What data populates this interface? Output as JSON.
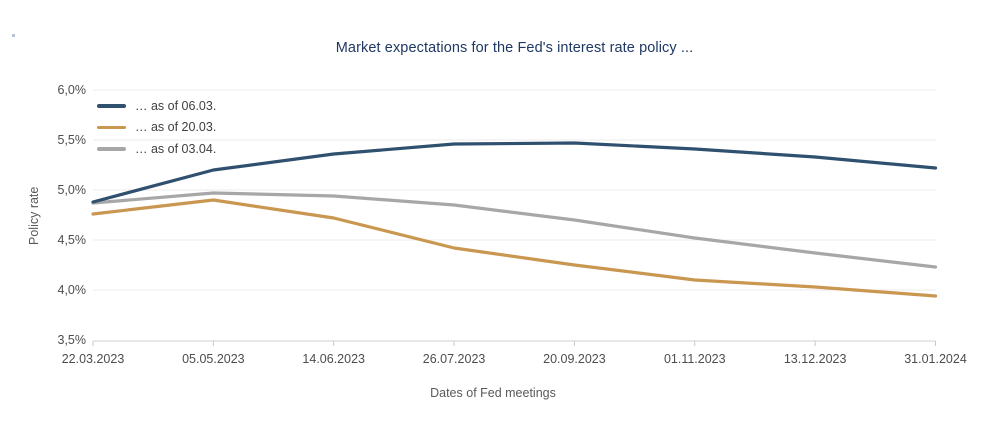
{
  "chart_data": {
    "type": "line",
    "title": "Market expectations for the Fed's interest rate policy ...",
    "xlabel": "Dates of Fed meetings",
    "ylabel": "Policy rate",
    "categories": [
      "22.03.2023",
      "05.05.2023",
      "14.06.2023",
      "26.07.2023",
      "20.09.2023",
      "01.11.2023",
      "13.12.2023",
      "31.01.2024"
    ],
    "series": [
      {
        "name": "… as of 06.03.",
        "color": "#30506F",
        "values": [
          4.88,
          5.2,
          5.36,
          5.46,
          5.47,
          5.41,
          5.33,
          5.22
        ]
      },
      {
        "name": "… as of 20.03.",
        "color": "#C99750",
        "values": [
          4.76,
          4.9,
          4.72,
          4.42,
          4.25,
          4.1,
          4.03,
          3.94
        ]
      },
      {
        "name": "… as of 03.04.",
        "color": "#A7A7A7",
        "values": [
          4.87,
          4.97,
          4.94,
          4.85,
          4.7,
          4.52,
          4.37,
          4.23
        ]
      }
    ],
    "yticks": [
      {
        "label": "6,0%",
        "value": 6.0
      },
      {
        "label": "5,5%",
        "value": 5.5
      },
      {
        "label": "5,0%",
        "value": 5.0
      },
      {
        "label": "4,5%",
        "value": 4.5
      },
      {
        "label": "4,0%",
        "value": 4.0
      },
      {
        "label": "3,5%",
        "value": 3.5
      }
    ],
    "ylim": [
      3.5,
      6.0
    ],
    "grid": "horizontal",
    "legend_position": "top-left-inside",
    "colors": {
      "title": "#1F3864",
      "tick_text": "#4D4D4D",
      "axis_title_text": "#595959",
      "gridline": "#EBEBEB",
      "axis_line": "#D2D2D2",
      "tick_mark": "#C9C9C9"
    }
  }
}
